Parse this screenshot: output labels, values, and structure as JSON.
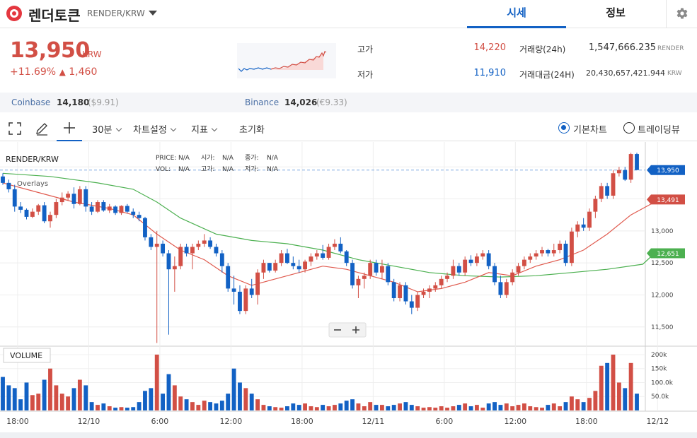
{
  "header": {
    "coin_name": "렌더토큰",
    "pair": "RENDER/KRW",
    "tabs": [
      {
        "label": "시세",
        "active": true
      },
      {
        "label": "정보",
        "active": false
      }
    ]
  },
  "summary": {
    "price": "13,950",
    "unit": "KRW",
    "change_pct": "+11.69%",
    "change_arrow": "▲",
    "change_abs": "1,460",
    "high_label": "고가",
    "high": "14,220",
    "low_label": "저가",
    "low": "11,910",
    "volume_label": "거래량(24h)",
    "volume": "1,547,666.235",
    "volume_unit": "RENDER",
    "amount_label": "거래대금(24H)",
    "amount": "20,430,657,421.944",
    "amount_unit": "KRW"
  },
  "exchanges": [
    {
      "name": "Coinbase",
      "price": "14,180",
      "sub": "($9.91)"
    },
    {
      "name": "Binance",
      "price": "14,026",
      "sub": "(€9.33)"
    }
  ],
  "toolbar": {
    "interval": "30분",
    "chart_settings": "차트설정",
    "indicators": "지표",
    "reset": "초기화",
    "radio_basic": "기본차트",
    "radio_tradingview": "트레이딩뷰"
  },
  "chart_info": {
    "symbol": "RENDER/KRW",
    "overlays": "Overlays",
    "price_label": "PRICE:",
    "price_val": "N/A",
    "open_label": "시가:",
    "open_val": "N/A",
    "close_label": "종가:",
    "close_val": "N/A",
    "vol_label": "VOL:",
    "vol_val": "N/A",
    "high_label": "고가:",
    "high_val": "N/A",
    "low_label": "저가:",
    "low_val": "N/A",
    "volume_panel_label": "VOLUME"
  },
  "colors": {
    "up": "#d24f45",
    "down": "#1261c4",
    "ma_short": "#e05a4e",
    "ma_long": "#4cb050"
  },
  "chart_data": {
    "type": "candlestick",
    "price_axis": {
      "ticks": [
        11500,
        12000,
        12500,
        13000
      ],
      "tick_labels": [
        "11,500",
        "12,000",
        "12,500",
        "13,000"
      ],
      "range": [
        11200,
        14300
      ]
    },
    "volume_axis": {
      "ticks": [
        50000,
        100000,
        150000,
        200000
      ],
      "tick_labels": [
        "50.0k",
        "100.0k",
        "150k",
        "200k"
      ],
      "range": [
        0,
        210000
      ]
    },
    "time_ticks": [
      {
        "label": "18:00",
        "index": 2.5
      },
      {
        "label": "12/10",
        "index": 14.5
      },
      {
        "label": "6:00",
        "index": 26.5
      },
      {
        "label": "12:00",
        "index": 38.5
      },
      {
        "label": "18:00",
        "index": 50.5
      },
      {
        "label": "12/11",
        "index": 62.5
      },
      {
        "label": "6:00",
        "index": 74.5
      },
      {
        "label": "12:00",
        "index": 86.5
      },
      {
        "label": "18:00",
        "index": 98.5
      },
      {
        "label": "12/12",
        "index": 110.5
      }
    ],
    "price_tags": [
      {
        "label": "13,950",
        "value": 13950,
        "color": "#1261c4"
      },
      {
        "label": "13,491",
        "value": 13491,
        "color": "#d24f45"
      },
      {
        "label": "12,651",
        "value": 12651,
        "color": "#4cb050"
      }
    ],
    "candles": [
      [
        13850,
        13900,
        13720,
        13750,
        120000
      ],
      [
        13750,
        13800,
        13600,
        13650,
        90000
      ],
      [
        13650,
        13720,
        13300,
        13380,
        80000
      ],
      [
        13380,
        13450,
        13280,
        13330,
        40000
      ],
      [
        13330,
        13350,
        13180,
        13220,
        100000
      ],
      [
        13220,
        13350,
        13200,
        13300,
        55000
      ],
      [
        13300,
        13420,
        13250,
        13400,
        60000
      ],
      [
        13400,
        13450,
        13120,
        13150,
        110000
      ],
      [
        13150,
        13300,
        13050,
        13250,
        150000
      ],
      [
        13250,
        13500,
        13200,
        13450,
        90000
      ],
      [
        13450,
        13600,
        13400,
        13520,
        60000
      ],
      [
        13520,
        13620,
        13480,
        13580,
        50000
      ],
      [
        13580,
        13680,
        13350,
        13420,
        80000
      ],
      [
        13420,
        13700,
        13400,
        13650,
        110000
      ],
      [
        13650,
        13700,
        13300,
        13380,
        90000
      ],
      [
        13380,
        13450,
        13250,
        13300,
        30000
      ],
      [
        13300,
        13480,
        13280,
        13450,
        20000
      ],
      [
        13450,
        13480,
        13300,
        13320,
        25000
      ],
      [
        13320,
        13420,
        13280,
        13380,
        15000
      ],
      [
        13380,
        13400,
        13250,
        13280,
        10000
      ],
      [
        13280,
        13400,
        13250,
        13390,
        12000
      ],
      [
        13390,
        13420,
        13280,
        13300,
        10000
      ],
      [
        13300,
        13350,
        13200,
        13250,
        12000
      ],
      [
        13250,
        13300,
        13150,
        13200,
        30000
      ],
      [
        13200,
        13220,
        12850,
        12900,
        70000
      ],
      [
        12900,
        12950,
        12700,
        12750,
        80000
      ],
      [
        12750,
        13000,
        11250,
        12800,
        200000
      ],
      [
        12800,
        12850,
        12600,
        12650,
        60000
      ],
      [
        12650,
        12700,
        11380,
        12400,
        130000
      ],
      [
        12400,
        12600,
        12050,
        12450,
        90000
      ],
      [
        12450,
        12800,
        12400,
        12750,
        50000
      ],
      [
        12750,
        12800,
        12600,
        12650,
        40000
      ],
      [
        12650,
        12800,
        12400,
        12750,
        30000
      ],
      [
        12750,
        12850,
        12700,
        12800,
        20000
      ],
      [
        12800,
        12950,
        12750,
        12850,
        35000
      ],
      [
        12850,
        12900,
        12720,
        12750,
        30000
      ],
      [
        12750,
        12800,
        12600,
        12650,
        25000
      ],
      [
        12650,
        12700,
        12350,
        12450,
        35000
      ],
      [
        12450,
        12500,
        12050,
        12100,
        60000
      ],
      [
        12100,
        12300,
        11850,
        12050,
        150000
      ],
      [
        12050,
        12150,
        11700,
        11750,
        100000
      ],
      [
        11750,
        12150,
        11700,
        12100,
        80000
      ],
      [
        12100,
        12250,
        11950,
        12000,
        60000
      ],
      [
        12000,
        12400,
        11850,
        12350,
        40000
      ],
      [
        12350,
        12550,
        12250,
        12500,
        20000
      ],
      [
        12500,
        12500,
        12350,
        12380,
        15000
      ],
      [
        12380,
        12550,
        12350,
        12500,
        12000
      ],
      [
        12500,
        12700,
        12450,
        12650,
        10000
      ],
      [
        12650,
        12720,
        12480,
        12500,
        15000
      ],
      [
        12500,
        12600,
        12400,
        12450,
        25000
      ],
      [
        12450,
        12550,
        12350,
        12400,
        20000
      ],
      [
        12400,
        12550,
        12350,
        12520,
        25000
      ],
      [
        12520,
        12650,
        12450,
        12600,
        15000
      ],
      [
        12600,
        12700,
        12550,
        12650,
        12000
      ],
      [
        12650,
        12780,
        12550,
        12580,
        20000
      ],
      [
        12580,
        12800,
        12550,
        12750,
        15000
      ],
      [
        12750,
        12870,
        12700,
        12800,
        20000
      ],
      [
        12800,
        12900,
        12650,
        12680,
        25000
      ],
      [
        12680,
        12700,
        12450,
        12500,
        35000
      ],
      [
        12500,
        12550,
        12100,
        12150,
        40000
      ],
      [
        12150,
        12300,
        11950,
        12250,
        25000
      ],
      [
        12250,
        12350,
        12100,
        12300,
        15000
      ],
      [
        12300,
        12550,
        12250,
        12500,
        30000
      ],
      [
        12500,
        12550,
        12300,
        12350,
        20000
      ],
      [
        12350,
        12550,
        12250,
        12450,
        20000
      ],
      [
        12450,
        12500,
        12150,
        12200,
        15000
      ],
      [
        12200,
        12250,
        11900,
        11950,
        20000
      ],
      [
        11950,
        12200,
        11900,
        12150,
        25000
      ],
      [
        12150,
        12200,
        11850,
        11900,
        30000
      ],
      [
        11900,
        12000,
        11700,
        11800,
        20000
      ],
      [
        11800,
        12050,
        11750,
        12000,
        15000
      ],
      [
        12000,
        12100,
        11950,
        12050,
        10000
      ],
      [
        12050,
        12150,
        11950,
        12100,
        12000
      ],
      [
        12100,
        12200,
        12050,
        12150,
        10000
      ],
      [
        12150,
        12300,
        12100,
        12250,
        15000
      ],
      [
        12250,
        12350,
        12200,
        12300,
        10000
      ],
      [
        12300,
        12550,
        12250,
        12450,
        15000
      ],
      [
        12450,
        12500,
        12300,
        12350,
        20000
      ],
      [
        12350,
        12600,
        12300,
        12550,
        25000
      ],
      [
        12550,
        12620,
        12450,
        12500,
        15000
      ],
      [
        12500,
        12650,
        12450,
        12600,
        20000
      ],
      [
        12600,
        12700,
        12550,
        12650,
        10000
      ],
      [
        12650,
        12700,
        12400,
        12450,
        25000
      ],
      [
        12450,
        12500,
        12150,
        12200,
        30000
      ],
      [
        12200,
        12300,
        11950,
        12000,
        20000
      ],
      [
        12000,
        12250,
        11950,
        12200,
        25000
      ],
      [
        12200,
        12400,
        12150,
        12350,
        15000
      ],
      [
        12350,
        12500,
        12300,
        12450,
        20000
      ],
      [
        12450,
        12600,
        12400,
        12550,
        25000
      ],
      [
        12550,
        12650,
        12500,
        12600,
        15000
      ],
      [
        12600,
        12700,
        12550,
        12650,
        12000
      ],
      [
        12650,
        12750,
        12600,
        12700,
        10000
      ],
      [
        12700,
        12720,
        12600,
        12650,
        20000
      ],
      [
        12650,
        12800,
        12600,
        12700,
        25000
      ],
      [
        12700,
        12850,
        12650,
        12800,
        15000
      ],
      [
        12800,
        12850,
        12450,
        12500,
        30000
      ],
      [
        12500,
        13050,
        12450,
        12990,
        50000
      ],
      [
        12990,
        13150,
        12900,
        13100,
        40000
      ],
      [
        13100,
        13200,
        13000,
        13050,
        30000
      ],
      [
        13050,
        13350,
        13000,
        13300,
        45000
      ],
      [
        13300,
        13550,
        13200,
        13500,
        70000
      ],
      [
        13500,
        13750,
        13450,
        13700,
        160000
      ],
      [
        13700,
        13750,
        13500,
        13550,
        170000
      ],
      [
        13550,
        13950,
        13500,
        13900,
        200000
      ],
      [
        13900,
        14000,
        13850,
        13950,
        100000
      ],
      [
        13950,
        14000,
        13780,
        13800,
        80000
      ],
      [
        13800,
        14220,
        13750,
        14200,
        170000
      ],
      [
        14200,
        14220,
        13950,
        13950,
        60000
      ]
    ],
    "ma_short": [
      [
        0,
        13750
      ],
      [
        6,
        13600
      ],
      [
        12,
        13450
      ],
      [
        18,
        13350
      ],
      [
        22,
        13250
      ],
      [
        26,
        12950
      ],
      [
        30,
        12700
      ],
      [
        34,
        12550
      ],
      [
        38,
        12300
      ],
      [
        42,
        12150
      ],
      [
        46,
        12250
      ],
      [
        50,
        12350
      ],
      [
        54,
        12450
      ],
      [
        58,
        12400
      ],
      [
        62,
        12300
      ],
      [
        66,
        12200
      ],
      [
        70,
        12050
      ],
      [
        74,
        12100
      ],
      [
        78,
        12200
      ],
      [
        82,
        12350
      ],
      [
        86,
        12300
      ],
      [
        90,
        12450
      ],
      [
        94,
        12550
      ],
      [
        98,
        12700
      ],
      [
        102,
        12950
      ],
      [
        106,
        13250
      ],
      [
        110,
        13450
      ]
    ],
    "ma_long": [
      [
        0,
        13900
      ],
      [
        8,
        13850
      ],
      [
        16,
        13750
      ],
      [
        22,
        13650
      ],
      [
        26,
        13450
      ],
      [
        30,
        13200
      ],
      [
        36,
        12950
      ],
      [
        42,
        12850
      ],
      [
        48,
        12800
      ],
      [
        54,
        12700
      ],
      [
        60,
        12550
      ],
      [
        66,
        12450
      ],
      [
        72,
        12350
      ],
      [
        78,
        12300
      ],
      [
        84,
        12280
      ],
      [
        90,
        12300
      ],
      [
        96,
        12350
      ],
      [
        102,
        12400
      ],
      [
        108,
        12480
      ],
      [
        110,
        12651
      ]
    ]
  }
}
